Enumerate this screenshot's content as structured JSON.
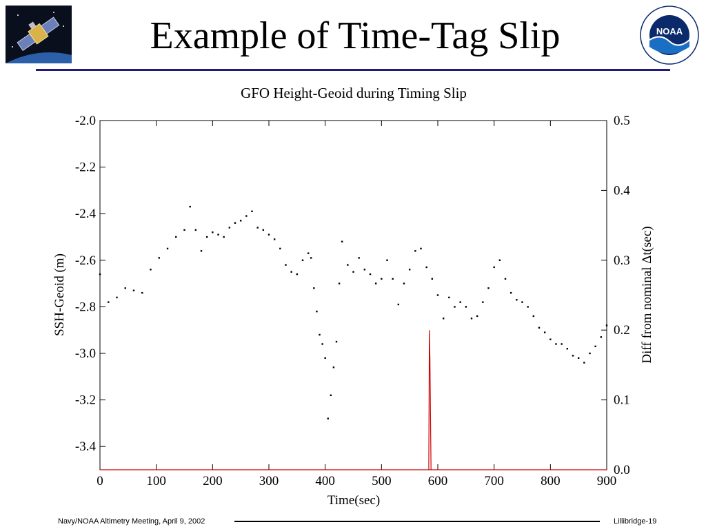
{
  "slide": {
    "title": "Example of Time-Tag Slip",
    "footer_left": "Navy/NOAA Altimetry Meeting, April 9, 2002",
    "footer_right": "Lillibridge-19",
    "logo_text": "NOAA",
    "colors": {
      "title_rule": "#1f1a7a",
      "noaa_blue": "#1a6fc4",
      "noaa_navy": "#0b2a6b"
    }
  },
  "chart_data": {
    "type": "scatter",
    "title": "GFO Height-Geoid during Timing Slip",
    "xlabel": "Time(sec)",
    "ylabel": "SSH-Geoid (m)",
    "y2label": "Diff from nominal Δt(sec)",
    "xlim": [
      0,
      900
    ],
    "ylim": [
      -3.5,
      -2.0
    ],
    "y2lim": [
      0.0,
      0.5
    ],
    "xticks": [
      "0",
      "100",
      "200",
      "300",
      "400",
      "500",
      "600",
      "700",
      "800",
      "900"
    ],
    "yticks": [
      "-2.0",
      "-2.2",
      "-2.4",
      "-2.6",
      "-2.8",
      "-3.0",
      "-3.2",
      "-3.4"
    ],
    "y2ticks": [
      "0.5",
      "0.4",
      "0.3",
      "0.2",
      "0.1",
      "0.0"
    ],
    "grid": false,
    "series": [
      {
        "axis": "left",
        "color": "#000000",
        "x": [
          0,
          15,
          30,
          45,
          60,
          75,
          90,
          105,
          120,
          135,
          150,
          160,
          170,
          180,
          190,
          200,
          210,
          220,
          230,
          240,
          250,
          260,
          270,
          280,
          290,
          300,
          310,
          320,
          330,
          340,
          350,
          360,
          370,
          375,
          380,
          385,
          390,
          395,
          400,
          405,
          410,
          415,
          420,
          425,
          430,
          440,
          450,
          460,
          470,
          480,
          490,
          500,
          510,
          520,
          530,
          540,
          550,
          560,
          570,
          580,
          590,
          600,
          610,
          620,
          630,
          640,
          650,
          660,
          670,
          680,
          690,
          700,
          710,
          720,
          730,
          740,
          750,
          760,
          770,
          780,
          790,
          800,
          810,
          820,
          830,
          840,
          850,
          860,
          870,
          880,
          890,
          900
        ],
        "y": [
          -2.66,
          -2.78,
          -2.76,
          -2.72,
          -2.73,
          -2.74,
          -2.64,
          -2.59,
          -2.55,
          -2.5,
          -2.47,
          -2.37,
          -2.47,
          -2.56,
          -2.5,
          -2.48,
          -2.49,
          -2.5,
          -2.46,
          -2.44,
          -2.43,
          -2.41,
          -2.39,
          -2.46,
          -2.47,
          -2.49,
          -2.51,
          -2.55,
          -2.62,
          -2.65,
          -2.66,
          -2.6,
          -2.57,
          -2.59,
          -2.72,
          -2.82,
          -2.92,
          -2.96,
          -3.02,
          -3.28,
          -3.18,
          -3.06,
          -2.95,
          -2.7,
          -2.52,
          -2.62,
          -2.65,
          -2.59,
          -2.64,
          -2.66,
          -2.7,
          -2.68,
          -2.6,
          -2.68,
          -2.79,
          -2.7,
          -2.64,
          -2.56,
          -2.55,
          -2.63,
          -2.68,
          -2.75,
          -2.85,
          -2.76,
          -2.8,
          -2.78,
          -2.8,
          -2.85,
          -2.84,
          -2.78,
          -2.72,
          -2.63,
          -2.6,
          -2.68,
          -2.74,
          -2.77,
          -2.78,
          -2.8,
          -2.84,
          -2.89,
          -2.91,
          -2.94,
          -2.96,
          -2.96,
          -2.98,
          -3.01,
          -3.02,
          -3.04,
          -3.0,
          -2.97,
          -2.93,
          -2.88
        ]
      },
      {
        "axis": "right",
        "color": "#cc0000",
        "x": [
          0,
          580,
          584,
          585,
          586,
          588,
          590,
          900
        ],
        "y": [
          0.0,
          0.0,
          0.0,
          0.2,
          0.16,
          0.0,
          0.0,
          0.0
        ]
      }
    ]
  }
}
